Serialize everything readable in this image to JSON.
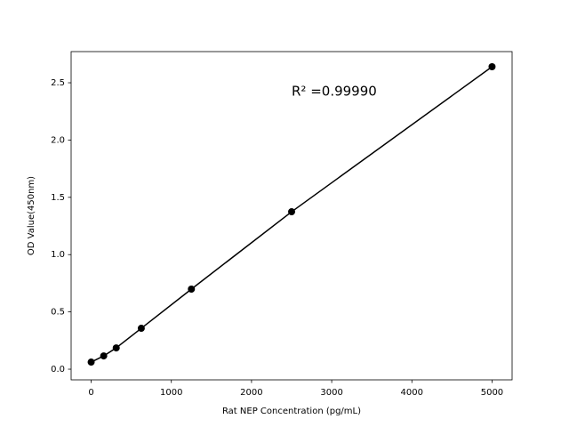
{
  "chart_data": {
    "type": "line",
    "x_label": "Rat NEP Concentration (pg/mL)",
    "y_label": "OD Value(450nm)",
    "annotation": "R² =0.99990",
    "x": [
      0,
      156.25,
      312.5,
      625,
      1250,
      2500,
      5000
    ],
    "series": [
      {
        "color": "#000000",
        "values": [
          0.062,
          0.116,
          0.186,
          0.357,
          0.699,
          1.374,
          2.64
        ]
      }
    ],
    "xlim": [
      -250,
      5250
    ],
    "ylim": [
      -0.093,
      2.772
    ],
    "xticks": [
      0,
      1000,
      2000,
      3000,
      4000,
      5000
    ],
    "yticks": [
      {
        "value": 0,
        "label": "0.0"
      },
      0.5,
      {
        "value": 1,
        "label": "1.0"
      },
      1.5,
      {
        "value": 2,
        "label": "2.0"
      },
      2.5
    ],
    "grid": false
  }
}
